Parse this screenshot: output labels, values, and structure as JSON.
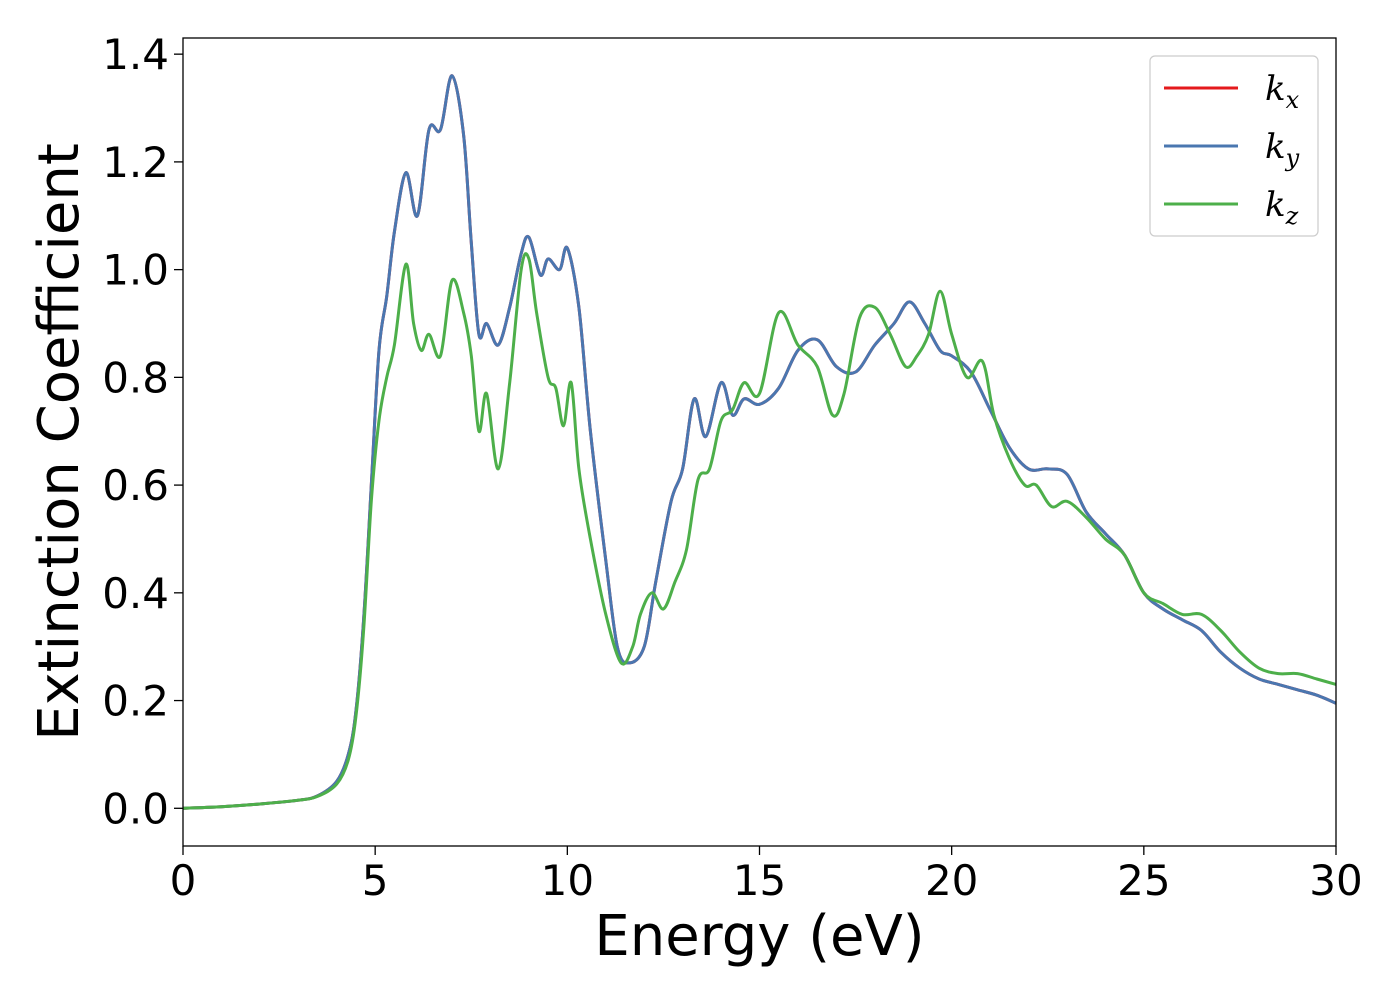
{
  "chart_data": {
    "type": "line",
    "xlabel": "Energy (eV)",
    "ylabel": "Extinction Coefficient",
    "xlim": [
      0,
      30
    ],
    "ylim": [
      -0.07,
      1.43
    ],
    "x_ticks": [
      "0",
      "5",
      "10",
      "15",
      "20",
      "25",
      "30"
    ],
    "y_ticks": [
      "0.0",
      "0.2",
      "0.4",
      "0.6",
      "0.8",
      "1.0",
      "1.2",
      "1.4"
    ],
    "grid": false,
    "legend": "top-right",
    "series": [
      {
        "name": "k_x",
        "label_base": "k",
        "label_sub": "x",
        "color": "#e41a1c",
        "points": [
          [
            0,
            0.0
          ],
          [
            1,
            0.003
          ],
          [
            2,
            0.008
          ],
          [
            3,
            0.015
          ],
          [
            3.5,
            0.023
          ],
          [
            4,
            0.05
          ],
          [
            4.3,
            0.1
          ],
          [
            4.5,
            0.18
          ],
          [
            4.7,
            0.35
          ],
          [
            4.9,
            0.6
          ],
          [
            5.1,
            0.85
          ],
          [
            5.3,
            0.95
          ],
          [
            5.5,
            1.07
          ],
          [
            5.8,
            1.18
          ],
          [
            6.1,
            1.1
          ],
          [
            6.4,
            1.26
          ],
          [
            6.7,
            1.26
          ],
          [
            7.0,
            1.36
          ],
          [
            7.3,
            1.25
          ],
          [
            7.5,
            1.05
          ],
          [
            7.7,
            0.88
          ],
          [
            7.9,
            0.9
          ],
          [
            8.2,
            0.86
          ],
          [
            8.5,
            0.93
          ],
          [
            8.8,
            1.03
          ],
          [
            9.0,
            1.06
          ],
          [
            9.3,
            0.99
          ],
          [
            9.5,
            1.02
          ],
          [
            9.8,
            1.0
          ],
          [
            10.0,
            1.04
          ],
          [
            10.3,
            0.93
          ],
          [
            10.6,
            0.7
          ],
          [
            11.0,
            0.46
          ],
          [
            11.3,
            0.3
          ],
          [
            11.6,
            0.27
          ],
          [
            12.0,
            0.3
          ],
          [
            12.3,
            0.42
          ],
          [
            12.7,
            0.57
          ],
          [
            13.0,
            0.63
          ],
          [
            13.3,
            0.76
          ],
          [
            13.6,
            0.69
          ],
          [
            14.0,
            0.79
          ],
          [
            14.3,
            0.73
          ],
          [
            14.6,
            0.76
          ],
          [
            15.0,
            0.75
          ],
          [
            15.5,
            0.78
          ],
          [
            16.0,
            0.85
          ],
          [
            16.5,
            0.87
          ],
          [
            17.0,
            0.82
          ],
          [
            17.5,
            0.81
          ],
          [
            18.0,
            0.86
          ],
          [
            18.5,
            0.9
          ],
          [
            18.9,
            0.94
          ],
          [
            19.3,
            0.9
          ],
          [
            19.7,
            0.85
          ],
          [
            20.0,
            0.84
          ],
          [
            20.5,
            0.81
          ],
          [
            21.0,
            0.74
          ],
          [
            21.5,
            0.67
          ],
          [
            22.0,
            0.63
          ],
          [
            22.5,
            0.63
          ],
          [
            23.0,
            0.62
          ],
          [
            23.5,
            0.55
          ],
          [
            24.0,
            0.51
          ],
          [
            24.5,
            0.47
          ],
          [
            25.0,
            0.4
          ],
          [
            25.5,
            0.37
          ],
          [
            26.0,
            0.35
          ],
          [
            26.5,
            0.33
          ],
          [
            27.0,
            0.29
          ],
          [
            27.5,
            0.26
          ],
          [
            28.0,
            0.24
          ],
          [
            28.5,
            0.23
          ],
          [
            29.0,
            0.22
          ],
          [
            29.5,
            0.21
          ],
          [
            30.0,
            0.195
          ]
        ]
      },
      {
        "name": "k_y",
        "label_base": "k",
        "label_sub": "y",
        "color": "#4a77b0",
        "points": [
          [
            0,
            0.0
          ],
          [
            1,
            0.003
          ],
          [
            2,
            0.008
          ],
          [
            3,
            0.015
          ],
          [
            3.5,
            0.023
          ],
          [
            4,
            0.05
          ],
          [
            4.3,
            0.1
          ],
          [
            4.5,
            0.18
          ],
          [
            4.7,
            0.35
          ],
          [
            4.9,
            0.6
          ],
          [
            5.1,
            0.85
          ],
          [
            5.3,
            0.95
          ],
          [
            5.5,
            1.07
          ],
          [
            5.8,
            1.18
          ],
          [
            6.1,
            1.1
          ],
          [
            6.4,
            1.26
          ],
          [
            6.7,
            1.26
          ],
          [
            7.0,
            1.36
          ],
          [
            7.3,
            1.25
          ],
          [
            7.5,
            1.05
          ],
          [
            7.7,
            0.88
          ],
          [
            7.9,
            0.9
          ],
          [
            8.2,
            0.86
          ],
          [
            8.5,
            0.93
          ],
          [
            8.8,
            1.03
          ],
          [
            9.0,
            1.06
          ],
          [
            9.3,
            0.99
          ],
          [
            9.5,
            1.02
          ],
          [
            9.8,
            1.0
          ],
          [
            10.0,
            1.04
          ],
          [
            10.3,
            0.93
          ],
          [
            10.6,
            0.7
          ],
          [
            11.0,
            0.46
          ],
          [
            11.3,
            0.3
          ],
          [
            11.6,
            0.27
          ],
          [
            12.0,
            0.3
          ],
          [
            12.3,
            0.42
          ],
          [
            12.7,
            0.57
          ],
          [
            13.0,
            0.63
          ],
          [
            13.3,
            0.76
          ],
          [
            13.6,
            0.69
          ],
          [
            14.0,
            0.79
          ],
          [
            14.3,
            0.73
          ],
          [
            14.6,
            0.76
          ],
          [
            15.0,
            0.75
          ],
          [
            15.5,
            0.78
          ],
          [
            16.0,
            0.85
          ],
          [
            16.5,
            0.87
          ],
          [
            17.0,
            0.82
          ],
          [
            17.5,
            0.81
          ],
          [
            18.0,
            0.86
          ],
          [
            18.5,
            0.9
          ],
          [
            18.9,
            0.94
          ],
          [
            19.3,
            0.9
          ],
          [
            19.7,
            0.85
          ],
          [
            20.0,
            0.84
          ],
          [
            20.5,
            0.81
          ],
          [
            21.0,
            0.74
          ],
          [
            21.5,
            0.67
          ],
          [
            22.0,
            0.63
          ],
          [
            22.5,
            0.63
          ],
          [
            23.0,
            0.62
          ],
          [
            23.5,
            0.55
          ],
          [
            24.0,
            0.51
          ],
          [
            24.5,
            0.47
          ],
          [
            25.0,
            0.4
          ],
          [
            25.5,
            0.37
          ],
          [
            26.0,
            0.35
          ],
          [
            26.5,
            0.33
          ],
          [
            27.0,
            0.29
          ],
          [
            27.5,
            0.26
          ],
          [
            28.0,
            0.24
          ],
          [
            28.5,
            0.23
          ],
          [
            29.0,
            0.22
          ],
          [
            29.5,
            0.21
          ],
          [
            30.0,
            0.195
          ]
        ]
      },
      {
        "name": "k_z",
        "label_base": "k",
        "label_sub": "z",
        "color": "#4daf4a",
        "points": [
          [
            0,
            0.0
          ],
          [
            1,
            0.003
          ],
          [
            2,
            0.008
          ],
          [
            3,
            0.015
          ],
          [
            3.5,
            0.022
          ],
          [
            4,
            0.045
          ],
          [
            4.3,
            0.09
          ],
          [
            4.5,
            0.17
          ],
          [
            4.7,
            0.33
          ],
          [
            4.9,
            0.57
          ],
          [
            5.1,
            0.72
          ],
          [
            5.3,
            0.8
          ],
          [
            5.5,
            0.86
          ],
          [
            5.8,
            1.01
          ],
          [
            6.0,
            0.9
          ],
          [
            6.2,
            0.85
          ],
          [
            6.4,
            0.88
          ],
          [
            6.7,
            0.84
          ],
          [
            7.0,
            0.98
          ],
          [
            7.3,
            0.92
          ],
          [
            7.5,
            0.84
          ],
          [
            7.7,
            0.7
          ],
          [
            7.9,
            0.77
          ],
          [
            8.2,
            0.63
          ],
          [
            8.5,
            0.79
          ],
          [
            8.8,
            1.0
          ],
          [
            9.0,
            1.02
          ],
          [
            9.2,
            0.92
          ],
          [
            9.5,
            0.8
          ],
          [
            9.7,
            0.78
          ],
          [
            9.9,
            0.71
          ],
          [
            10.1,
            0.79
          ],
          [
            10.3,
            0.63
          ],
          [
            10.6,
            0.5
          ],
          [
            11.0,
            0.36
          ],
          [
            11.4,
            0.27
          ],
          [
            11.7,
            0.3
          ],
          [
            11.9,
            0.36
          ],
          [
            12.2,
            0.4
          ],
          [
            12.5,
            0.37
          ],
          [
            12.8,
            0.42
          ],
          [
            13.1,
            0.48
          ],
          [
            13.4,
            0.61
          ],
          [
            13.7,
            0.63
          ],
          [
            14.0,
            0.72
          ],
          [
            14.3,
            0.74
          ],
          [
            14.6,
            0.79
          ],
          [
            15.0,
            0.77
          ],
          [
            15.5,
            0.92
          ],
          [
            16.0,
            0.86
          ],
          [
            16.5,
            0.82
          ],
          [
            16.9,
            0.73
          ],
          [
            17.2,
            0.77
          ],
          [
            17.6,
            0.91
          ],
          [
            18.0,
            0.93
          ],
          [
            18.4,
            0.88
          ],
          [
            18.8,
            0.82
          ],
          [
            19.1,
            0.84
          ],
          [
            19.4,
            0.88
          ],
          [
            19.7,
            0.96
          ],
          [
            20.0,
            0.88
          ],
          [
            20.4,
            0.8
          ],
          [
            20.8,
            0.83
          ],
          [
            21.1,
            0.73
          ],
          [
            21.5,
            0.65
          ],
          [
            21.9,
            0.6
          ],
          [
            22.2,
            0.6
          ],
          [
            22.6,
            0.56
          ],
          [
            23.0,
            0.57
          ],
          [
            23.5,
            0.54
          ],
          [
            24.0,
            0.5
          ],
          [
            24.5,
            0.47
          ],
          [
            25.0,
            0.4
          ],
          [
            25.5,
            0.38
          ],
          [
            26.0,
            0.36
          ],
          [
            26.5,
            0.36
          ],
          [
            27.0,
            0.33
          ],
          [
            27.5,
            0.29
          ],
          [
            28.0,
            0.26
          ],
          [
            28.5,
            0.25
          ],
          [
            29.0,
            0.25
          ],
          [
            29.5,
            0.24
          ],
          [
            30.0,
            0.23
          ]
        ]
      }
    ]
  }
}
